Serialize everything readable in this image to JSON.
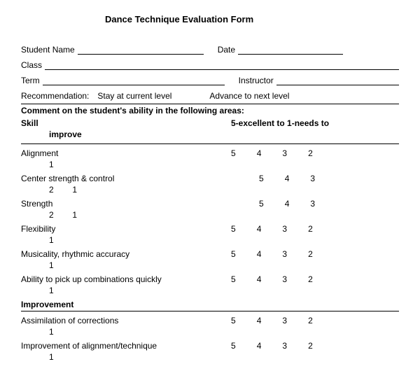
{
  "title": "Dance Technique Evaluation Form",
  "fields": {
    "student_name": "Student Name",
    "date": "Date",
    "class": "Class",
    "term": "Term",
    "instructor": "Instructor",
    "recommendation": "Recommendation:",
    "stay": "Stay at current level",
    "advance": "Advance to next level"
  },
  "comment_header": "Comment on the student's ability in the following areas:",
  "col_skill": "Skill",
  "col_scale": "5-excellent to 1-needs to",
  "col_scale_wrap": "improve",
  "section_improvement": "Improvement",
  "skills": [
    {
      "label": "Alignment",
      "nums": [
        "5",
        "4",
        "3",
        "2"
      ],
      "wrap": "1"
    },
    {
      "label": "Center strength & control",
      "nums": [
        "5",
        "4",
        "3"
      ],
      "wrap": "2        1",
      "indent": true
    },
    {
      "label": "Strength",
      "nums": [
        "5",
        "4",
        "3"
      ],
      "wrap": "2        1",
      "indent": true
    },
    {
      "label": "Flexibility",
      "nums": [
        "5",
        "4",
        "3",
        "2"
      ],
      "wrap": "1"
    },
    {
      "label": "Musicality, rhythmic accuracy",
      "nums": [
        "5",
        "4",
        "3",
        "2"
      ],
      "wrap": "1"
    },
    {
      "label": "Ability to pick up combinations quickly",
      "nums": [
        "5",
        "4",
        "3",
        "2"
      ],
      "wrap": "1"
    }
  ],
  "improvement": [
    {
      "label": "Assimilation of corrections",
      "nums": [
        "5",
        "4",
        "3",
        "2"
      ],
      "wrap": "1"
    },
    {
      "label": "Improvement of alignment/technique",
      "nums": [
        "5",
        "4",
        "3",
        "2"
      ],
      "wrap": "1"
    }
  ]
}
